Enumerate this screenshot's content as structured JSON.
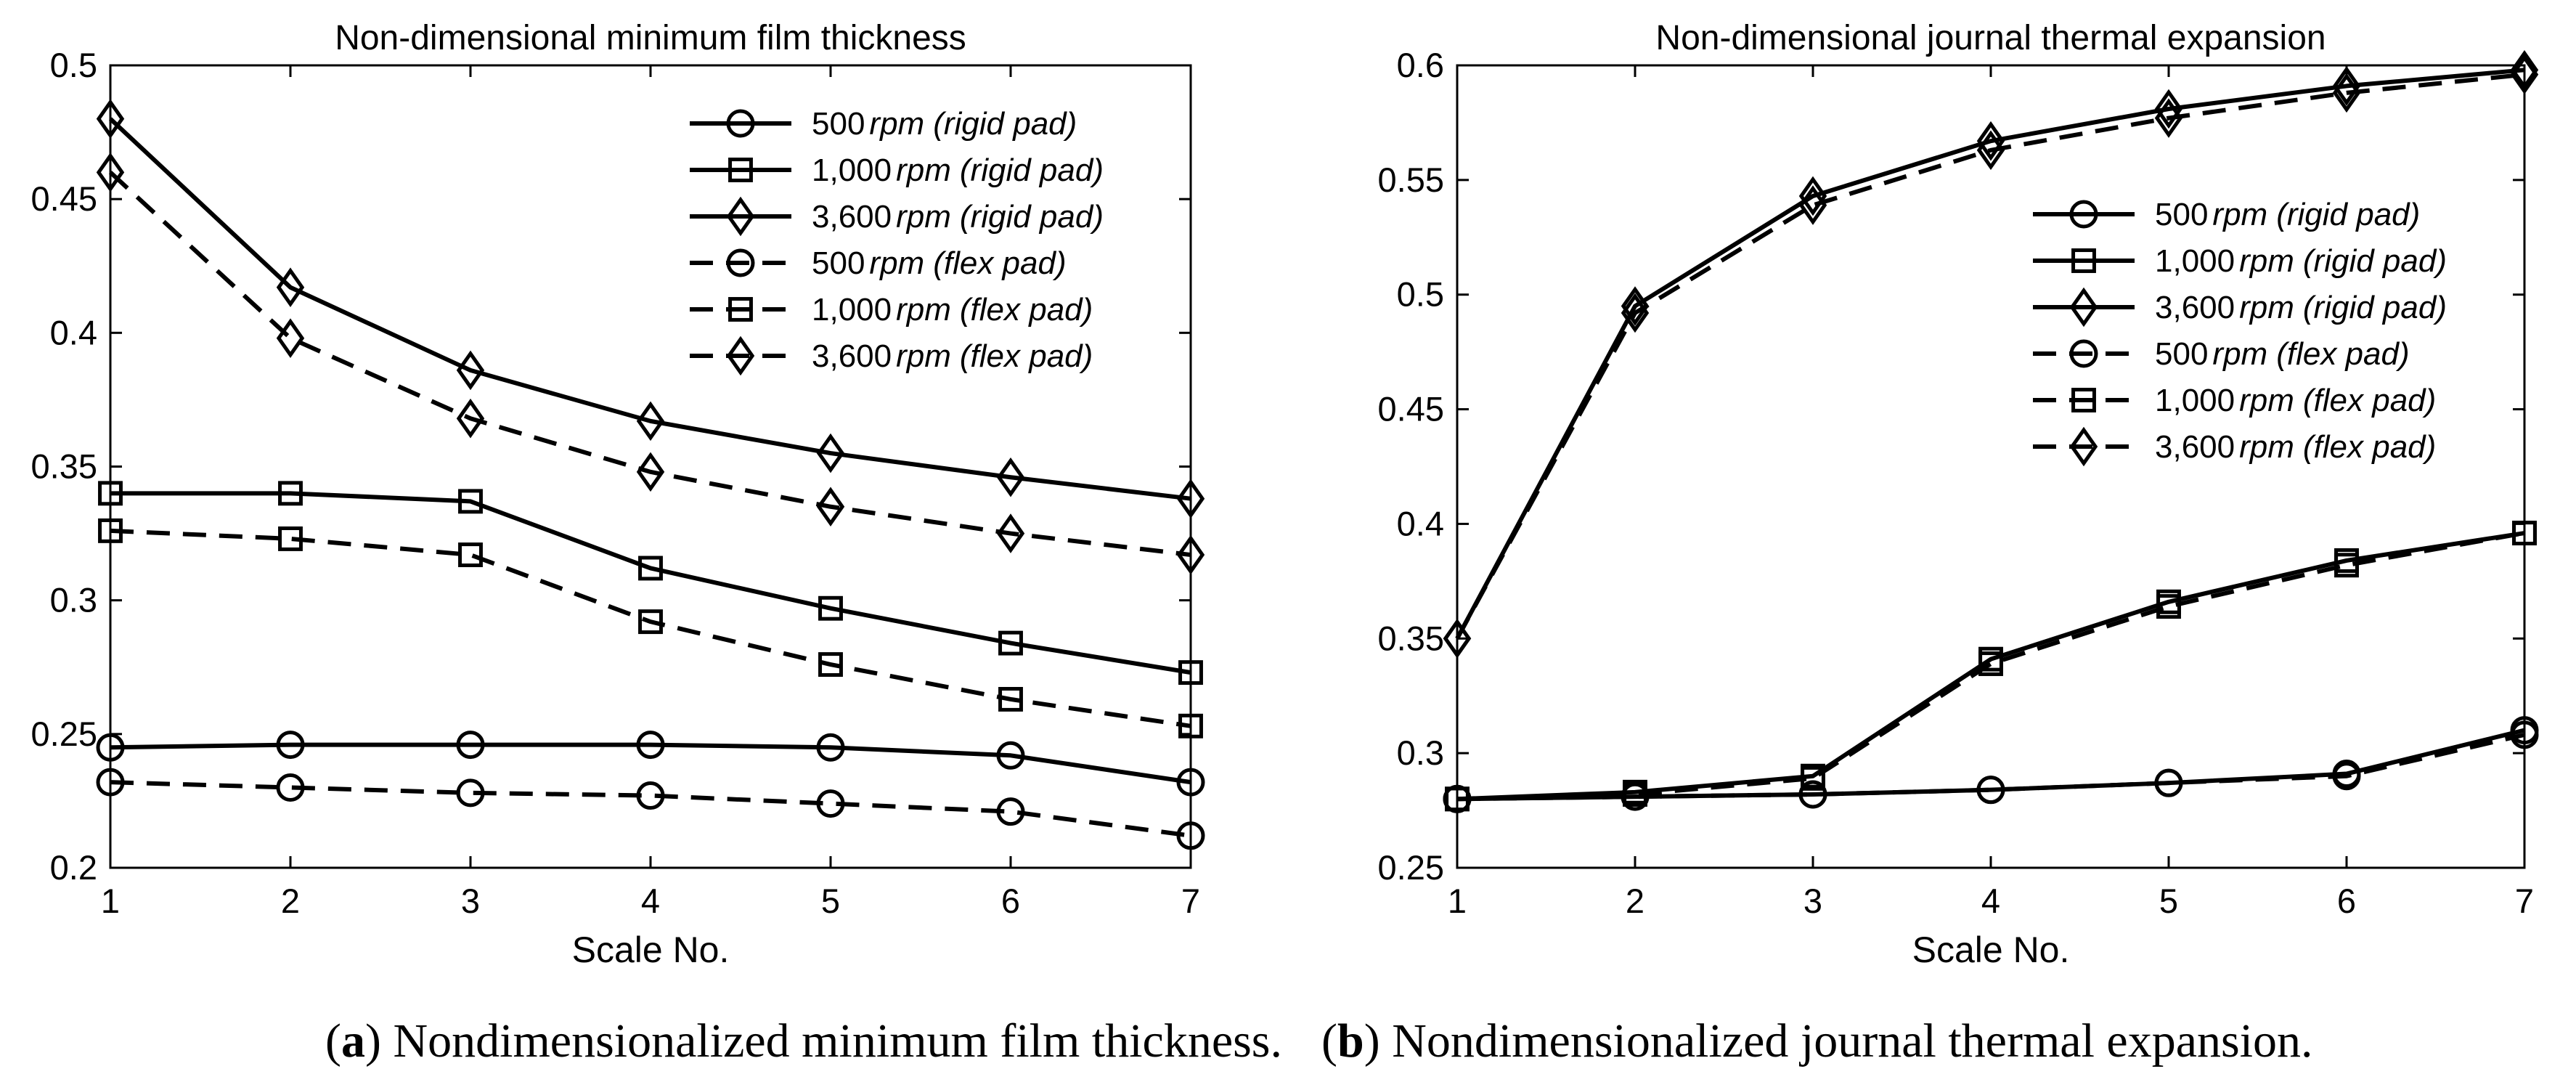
{
  "chart_data": [
    {
      "type": "line",
      "title": "Non-dimensional minimum film thickness",
      "xlabel": "Scale No.",
      "ylabel": "",
      "x": [
        1,
        2,
        3,
        4,
        5,
        6,
        7
      ],
      "xlim": [
        1,
        7
      ],
      "ylim": [
        0.2,
        0.5
      ],
      "xticks": [
        "1",
        "2",
        "3",
        "4",
        "5",
        "6",
        "7"
      ],
      "yticks": [
        "0.2",
        "0.25",
        "0.3",
        "0.35",
        "0.4",
        "0.45",
        "0.5"
      ],
      "legend_position": "top-right",
      "series": [
        {
          "name": "500 rpm (rigid pad)",
          "speed": "500",
          "unit": "rpm",
          "pad": "(rigid pad)",
          "marker": "circle",
          "style": "solid",
          "values": [
            0.245,
            0.246,
            0.246,
            0.246,
            0.245,
            0.242,
            0.232
          ]
        },
        {
          "name": "1,000 rpm (rigid pad)",
          "speed": "1,000",
          "unit": "rpm",
          "pad": "(rigid pad)",
          "marker": "square",
          "style": "solid",
          "values": [
            0.34,
            0.34,
            0.337,
            0.312,
            0.297,
            0.284,
            0.273
          ]
        },
        {
          "name": "3,600 rpm (rigid pad)",
          "speed": "3,600",
          "unit": "rpm",
          "pad": "(rigid pad)",
          "marker": "diamond",
          "style": "solid",
          "values": [
            0.48,
            0.417,
            0.386,
            0.367,
            0.355,
            0.346,
            0.338
          ]
        },
        {
          "name": "500 rpm (flex pad)",
          "speed": "500",
          "unit": "rpm",
          "pad": "(flex pad)",
          "marker": "circle",
          "style": "dashed",
          "values": [
            0.232,
            0.23,
            0.228,
            0.227,
            0.224,
            0.221,
            0.212
          ]
        },
        {
          "name": "1,000 rpm (flex pad)",
          "speed": "1,000",
          "unit": "rpm",
          "pad": "(flex pad)",
          "marker": "square",
          "style": "dashed",
          "values": [
            0.326,
            0.323,
            0.317,
            0.292,
            0.276,
            0.263,
            0.253
          ]
        },
        {
          "name": "3,600 rpm (flex pad)",
          "speed": "3,600",
          "unit": "rpm",
          "pad": "(flex pad)",
          "marker": "diamond",
          "style": "dashed",
          "values": [
            0.46,
            0.398,
            0.368,
            0.348,
            0.335,
            0.325,
            0.317
          ]
        }
      ]
    },
    {
      "type": "line",
      "title": "Non-dimensional journal thermal expansion",
      "xlabel": "Scale No.",
      "ylabel": "",
      "x": [
        1,
        2,
        3,
        4,
        5,
        6,
        7
      ],
      "xlim": [
        1,
        7
      ],
      "ylim": [
        0.25,
        0.6
      ],
      "xticks": [
        "1",
        "2",
        "3",
        "4",
        "5",
        "6",
        "7"
      ],
      "yticks": [
        "0.25",
        "0.3",
        "0.35",
        "0.4",
        "0.45",
        "0.5",
        "0.55",
        "0.6"
      ],
      "legend_position": "right",
      "series": [
        {
          "name": "500 rpm (rigid pad)",
          "speed": "500",
          "unit": "rpm",
          "pad": "(rigid pad)",
          "marker": "circle",
          "style": "solid",
          "values": [
            0.28,
            0.281,
            0.282,
            0.284,
            0.287,
            0.291,
            0.31
          ]
        },
        {
          "name": "1,000 rpm (rigid pad)",
          "speed": "1,000",
          "unit": "rpm",
          "pad": "(rigid pad)",
          "marker": "square",
          "style": "solid",
          "values": [
            0.28,
            0.283,
            0.29,
            0.341,
            0.366,
            0.384,
            0.396
          ]
        },
        {
          "name": "3,600 rpm (rigid pad)",
          "speed": "3,600",
          "unit": "rpm",
          "pad": "(rigid pad)",
          "marker": "diamond",
          "style": "solid",
          "values": [
            0.35,
            0.495,
            0.543,
            0.567,
            0.581,
            0.591,
            0.598
          ]
        },
        {
          "name": "500 rpm (flex pad)",
          "speed": "500",
          "unit": "rpm",
          "pad": "(flex pad)",
          "marker": "circle",
          "style": "dashed",
          "values": [
            0.28,
            0.281,
            0.282,
            0.284,
            0.287,
            0.29,
            0.308
          ]
        },
        {
          "name": "1,000 rpm (flex pad)",
          "speed": "1,000",
          "unit": "rpm",
          "pad": "(flex pad)",
          "marker": "square",
          "style": "dashed",
          "values": [
            0.28,
            0.282,
            0.289,
            0.339,
            0.364,
            0.382,
            0.396
          ]
        },
        {
          "name": "3,600 rpm (flex pad)",
          "speed": "3,600",
          "unit": "rpm",
          "pad": "(flex pad)",
          "marker": "diamond",
          "style": "dashed",
          "values": [
            0.35,
            0.492,
            0.539,
            0.563,
            0.577,
            0.588,
            0.596
          ]
        }
      ]
    }
  ],
  "captions": [
    {
      "label": "a",
      "text": " Nondimensionalized minimum film thickness."
    },
    {
      "label": "b",
      "text": " Nondimensionalized journal thermal expansion."
    }
  ]
}
